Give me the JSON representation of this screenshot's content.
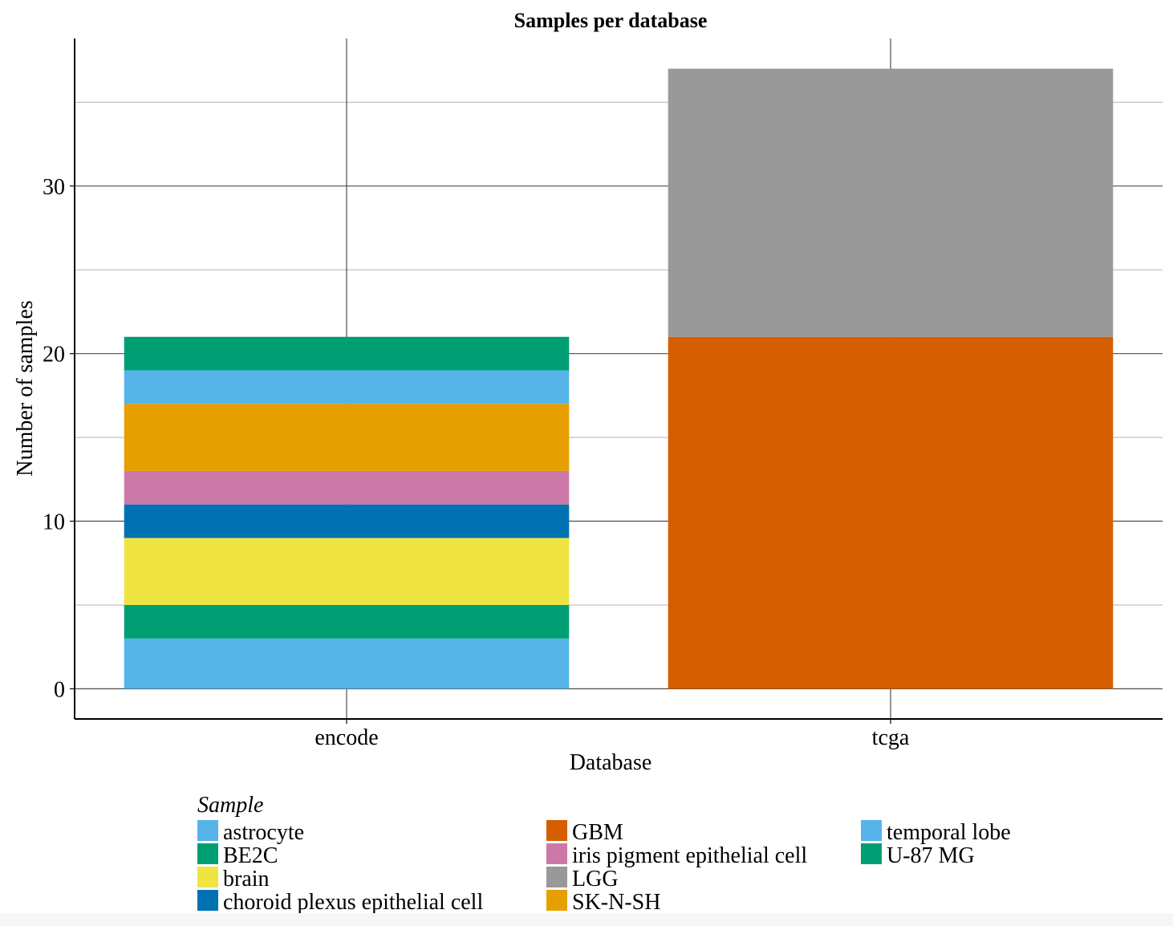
{
  "chart_data": {
    "type": "bar",
    "stacked": true,
    "title": "Samples per database",
    "xlabel": "Database",
    "ylabel": "Number of samples",
    "categories": [
      "encode",
      "tcga"
    ],
    "ylim": [
      -1.8,
      38.8
    ],
    "yticks": [
      0,
      10,
      20,
      30
    ],
    "grid": true,
    "legend_title": "Sample",
    "legend_position": "bottom",
    "series": [
      {
        "name": "astrocyte",
        "color": "#56B4E9",
        "values": [
          3,
          0
        ]
      },
      {
        "name": "BE2C",
        "color": "#009E73",
        "values": [
          2,
          0
        ]
      },
      {
        "name": "brain",
        "color": "#F0E442",
        "values": [
          4,
          0
        ]
      },
      {
        "name": "choroid plexus epithelial cell",
        "color": "#0072B2",
        "values": [
          2,
          0
        ]
      },
      {
        "name": "GBM",
        "color": "#D55E00",
        "values": [
          0,
          21
        ]
      },
      {
        "name": "iris pigment epithelial cell",
        "color": "#CC79A7",
        "values": [
          2,
          0
        ]
      },
      {
        "name": "LGG",
        "color": "#999999",
        "values": [
          0,
          16
        ]
      },
      {
        "name": "SK-N-SH",
        "color": "#E69F00",
        "values": [
          4,
          0
        ]
      },
      {
        "name": "temporal lobe",
        "color": "#56B4E9",
        "values": [
          2,
          0
        ]
      },
      {
        "name": "U-87 MG",
        "color": "#009E73",
        "values": [
          2,
          0
        ]
      }
    ]
  }
}
